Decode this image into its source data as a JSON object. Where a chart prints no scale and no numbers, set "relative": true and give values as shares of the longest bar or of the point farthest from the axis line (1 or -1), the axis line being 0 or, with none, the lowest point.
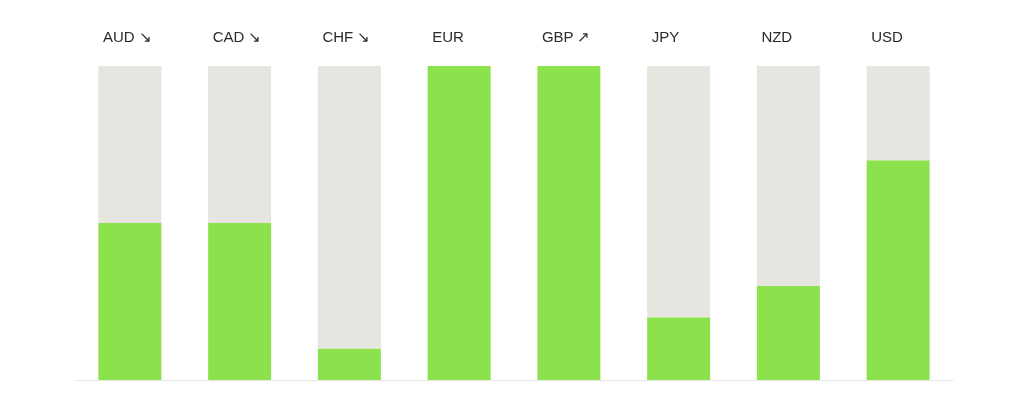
{
  "chart_data": {
    "type": "bar",
    "relative": true,
    "stacked": true,
    "categories": [
      "AUD ↘",
      "CAD ↘",
      "CHF ↘",
      "EUR",
      "GBP ↗",
      "JPY",
      "NZD",
      "USD"
    ],
    "series": [
      {
        "color": "#8ce24d",
        "values": [
          0.5,
          0.5,
          0.1,
          1,
          1,
          0.2,
          0.3,
          0.7
        ]
      },
      {
        "color": "#e6e5e0",
        "values": [
          0.5,
          0.5,
          0.9,
          null,
          null,
          0.8,
          0.7,
          0.3
        ]
      }
    ]
  }
}
